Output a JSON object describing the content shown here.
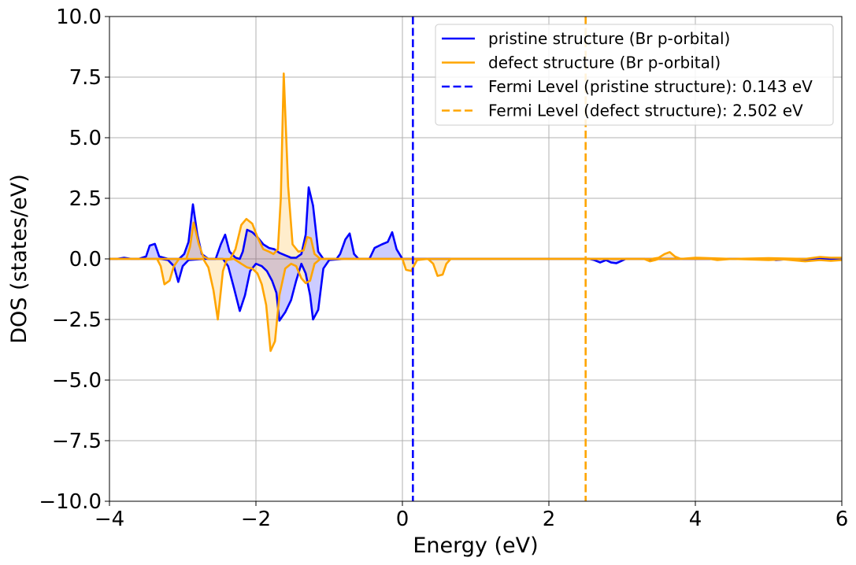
{
  "chart_data": {
    "type": "line",
    "title": "",
    "xlabel": "Energy (eV)",
    "ylabel": "DOS (states/eV)",
    "xlim": [
      -4,
      6
    ],
    "ylim": [
      -10,
      10
    ],
    "grid": true,
    "legend_position": "top-right",
    "x_ticks": [
      {
        "value": -4,
        "label": "−4"
      },
      {
        "value": -2,
        "label": "−2"
      },
      {
        "value": 0,
        "label": "0"
      },
      {
        "value": 2,
        "label": "2"
      },
      {
        "value": 4,
        "label": "4"
      },
      {
        "value": 6,
        "label": "6"
      }
    ],
    "y_ticks": [
      {
        "value": -10,
        "label": "−10.0"
      },
      {
        "value": -7.5,
        "label": "−7.5"
      },
      {
        "value": -5,
        "label": "−5.0"
      },
      {
        "value": -2.5,
        "label": "−2.5"
      },
      {
        "value": 0,
        "label": "0.0"
      },
      {
        "value": 2.5,
        "label": "2.5"
      },
      {
        "value": 5,
        "label": "5.0"
      },
      {
        "value": 7.5,
        "label": "7.5"
      },
      {
        "value": 10,
        "label": "10.0"
      }
    ],
    "series": [
      {
        "name": "pristine structure (Br p-orbital)",
        "color": "#0000ff",
        "fill": "rgba(0,0,255,0.2)",
        "up": [
          [
            -4,
            0
          ],
          [
            -3.9,
            0
          ],
          [
            -3.8,
            0.05
          ],
          [
            -3.7,
            0
          ],
          [
            -3.6,
            0
          ],
          [
            -3.5,
            0.1
          ],
          [
            -3.45,
            0.55
          ],
          [
            -3.38,
            0.62
          ],
          [
            -3.32,
            0.1
          ],
          [
            -3.2,
            0
          ],
          [
            -3.05,
            0
          ],
          [
            -2.98,
            0.2
          ],
          [
            -2.92,
            0.7
          ],
          [
            -2.86,
            2.25
          ],
          [
            -2.8,
            1
          ],
          [
            -2.74,
            0.2
          ],
          [
            -2.65,
            0
          ],
          [
            -2.55,
            0
          ],
          [
            -2.48,
            0.6
          ],
          [
            -2.42,
            1.0
          ],
          [
            -2.36,
            0.3
          ],
          [
            -2.28,
            0.05
          ],
          [
            -2.22,
            0
          ],
          [
            -2.18,
            0.3
          ],
          [
            -2.12,
            1.2
          ],
          [
            -2.05,
            1.1
          ],
          [
            -1.98,
            0.9
          ],
          [
            -1.9,
            0.6
          ],
          [
            -1.82,
            0.45
          ],
          [
            -1.75,
            0.4
          ],
          [
            -1.68,
            0.25
          ],
          [
            -1.6,
            0.15
          ],
          [
            -1.52,
            0.05
          ],
          [
            -1.45,
            0.05
          ],
          [
            -1.38,
            0.2
          ],
          [
            -1.32,
            1.0
          ],
          [
            -1.28,
            2.95
          ],
          [
            -1.22,
            2.2
          ],
          [
            -1.15,
            0.3
          ],
          [
            -1.08,
            0
          ],
          [
            -0.9,
            0
          ],
          [
            -0.85,
            0.2
          ],
          [
            -0.78,
            0.8
          ],
          [
            -0.72,
            1.05
          ],
          [
            -0.66,
            0.2
          ],
          [
            -0.6,
            0
          ],
          [
            -0.45,
            0
          ],
          [
            -0.38,
            0.45
          ],
          [
            -0.28,
            0.6
          ],
          [
            -0.2,
            0.7
          ],
          [
            -0.14,
            1.1
          ],
          [
            -0.08,
            0.4
          ],
          [
            0,
            0
          ],
          [
            6,
            0
          ]
        ],
        "down": [
          [
            -4,
            0
          ],
          [
            -3.3,
            0
          ],
          [
            -3.2,
            -0.05
          ],
          [
            -3.12,
            -0.3
          ],
          [
            -3.06,
            -0.95
          ],
          [
            -3.0,
            -0.3
          ],
          [
            -2.92,
            -0.05
          ],
          [
            -2.7,
            0
          ],
          [
            -2.45,
            0
          ],
          [
            -2.38,
            -0.3
          ],
          [
            -2.3,
            -1.2
          ],
          [
            -2.22,
            -2.15
          ],
          [
            -2.15,
            -1.5
          ],
          [
            -2.08,
            -0.5
          ],
          [
            -2.0,
            -0.2
          ],
          [
            -1.92,
            -0.3
          ],
          [
            -1.85,
            -0.5
          ],
          [
            -1.78,
            -0.9
          ],
          [
            -1.72,
            -1.4
          ],
          [
            -1.68,
            -2.55
          ],
          [
            -1.6,
            -2.2
          ],
          [
            -1.52,
            -1.7
          ],
          [
            -1.45,
            -0.9
          ],
          [
            -1.38,
            -0.2
          ],
          [
            -1.32,
            -0.6
          ],
          [
            -1.26,
            -1.5
          ],
          [
            -1.22,
            -2.5
          ],
          [
            -1.15,
            -2.1
          ],
          [
            -1.08,
            -0.4
          ],
          [
            -1.0,
            -0.05
          ],
          [
            -0.8,
            0
          ],
          [
            2.55,
            0
          ],
          [
            2.62,
            -0.05
          ],
          [
            2.7,
            -0.15
          ],
          [
            2.78,
            -0.05
          ],
          [
            2.85,
            -0.15
          ],
          [
            2.92,
            -0.18
          ],
          [
            2.98,
            -0.1
          ],
          [
            3.05,
            0
          ],
          [
            3.3,
            0
          ],
          [
            3.38,
            -0.05
          ],
          [
            3.45,
            0
          ],
          [
            5.0,
            0
          ],
          [
            5.1,
            -0.05
          ],
          [
            5.3,
            0
          ],
          [
            5.5,
            -0.03
          ],
          [
            5.7,
            0
          ],
          [
            6,
            0
          ]
        ]
      },
      {
        "name": "defect structure (Br p-orbital)",
        "color": "#ffa500",
        "fill": "rgba(255,165,0,0.2)",
        "up": [
          [
            -4,
            0
          ],
          [
            -2.95,
            0
          ],
          [
            -2.9,
            0.5
          ],
          [
            -2.85,
            1.5
          ],
          [
            -2.78,
            0.6
          ],
          [
            -2.72,
            0.1
          ],
          [
            -2.65,
            0
          ],
          [
            -2.35,
            0
          ],
          [
            -2.28,
            0.4
          ],
          [
            -2.2,
            1.4
          ],
          [
            -2.13,
            1.65
          ],
          [
            -2.05,
            1.45
          ],
          [
            -1.98,
            0.9
          ],
          [
            -1.9,
            0.4
          ],
          [
            -1.82,
            0.3
          ],
          [
            -1.76,
            0.2
          ],
          [
            -1.7,
            0.4
          ],
          [
            -1.66,
            2.5
          ],
          [
            -1.62,
            7.65
          ],
          [
            -1.56,
            3.0
          ],
          [
            -1.5,
            0.6
          ],
          [
            -1.42,
            0.3
          ],
          [
            -1.35,
            0.35
          ],
          [
            -1.3,
            0.9
          ],
          [
            -1.25,
            0.85
          ],
          [
            -1.2,
            0.2
          ],
          [
            -1.12,
            0
          ],
          [
            3.4,
            0
          ],
          [
            3.5,
            0.05
          ],
          [
            3.58,
            0.2
          ],
          [
            3.65,
            0.28
          ],
          [
            3.72,
            0.1
          ],
          [
            3.8,
            0
          ],
          [
            4.0,
            0.05
          ],
          [
            4.5,
            0
          ],
          [
            5.0,
            0.03
          ],
          [
            5.5,
            0
          ],
          [
            5.7,
            0.08
          ],
          [
            5.85,
            0.05
          ],
          [
            6,
            0.05
          ]
        ],
        "down": [
          [
            -4,
            0
          ],
          [
            -3.35,
            0
          ],
          [
            -3.3,
            -0.3
          ],
          [
            -3.25,
            -1.05
          ],
          [
            -3.18,
            -0.9
          ],
          [
            -3.12,
            -0.3
          ],
          [
            -3.05,
            0
          ],
          [
            -2.72,
            0
          ],
          [
            -2.65,
            -0.35
          ],
          [
            -2.58,
            -1.3
          ],
          [
            -2.52,
            -2.5
          ],
          [
            -2.45,
            -0.5
          ],
          [
            -2.4,
            -0.05
          ],
          [
            -2.3,
            0
          ],
          [
            -2.2,
            -0.2
          ],
          [
            -2.12,
            -0.35
          ],
          [
            -2.05,
            -0.4
          ],
          [
            -1.98,
            -0.6
          ],
          [
            -1.92,
            -1.05
          ],
          [
            -1.86,
            -1.9
          ],
          [
            -1.8,
            -3.8
          ],
          [
            -1.74,
            -3.4
          ],
          [
            -1.68,
            -1.5
          ],
          [
            -1.6,
            -0.4
          ],
          [
            -1.52,
            -0.2
          ],
          [
            -1.45,
            -0.3
          ],
          [
            -1.38,
            -0.8
          ],
          [
            -1.32,
            -1.0
          ],
          [
            -1.26,
            -0.9
          ],
          [
            -1.2,
            -0.2
          ],
          [
            -1.12,
            0
          ],
          [
            0,
            0
          ],
          [
            0.05,
            -0.45
          ],
          [
            0.12,
            -0.5
          ],
          [
            0.2,
            -0.05
          ],
          [
            0.35,
            0
          ],
          [
            0.42,
            -0.2
          ],
          [
            0.48,
            -0.7
          ],
          [
            0.55,
            -0.65
          ],
          [
            0.6,
            -0.2
          ],
          [
            0.66,
            0
          ],
          [
            3.3,
            0
          ],
          [
            3.38,
            -0.1
          ],
          [
            3.45,
            -0.05
          ],
          [
            3.5,
            0
          ],
          [
            4.2,
            0
          ],
          [
            4.3,
            -0.05
          ],
          [
            4.5,
            0
          ],
          [
            5.0,
            -0.05
          ],
          [
            5.2,
            -0.02
          ],
          [
            5.5,
            -0.1
          ],
          [
            5.7,
            -0.05
          ],
          [
            5.85,
            -0.08
          ],
          [
            6,
            -0.05
          ]
        ]
      }
    ],
    "reference_lines": [
      {
        "name": "Fermi Level (pristine structure): 0.143 eV",
        "x": 0.143,
        "color": "#0000ff",
        "style": "dashed"
      },
      {
        "name": "Fermi Level (defect structure): 2.502 eV",
        "x": 2.502,
        "color": "#ffa500",
        "style": "dashed"
      }
    ]
  }
}
